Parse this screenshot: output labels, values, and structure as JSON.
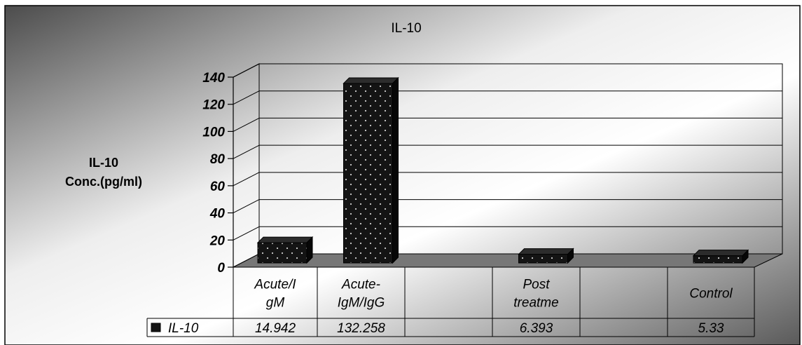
{
  "chart_data": {
    "type": "bar",
    "title": "IL-10",
    "ylabel": [
      "IL-10",
      "Conc.(pg/ml)"
    ],
    "xlabel": "",
    "ylim": [
      0,
      140
    ],
    "yticks": [
      0,
      20,
      40,
      60,
      80,
      100,
      120,
      140
    ],
    "grid": true,
    "categories": [
      [
        "Acute/I",
        "gM"
      ],
      [
        "Acute-",
        "IgM/IgG"
      ],
      [
        ""
      ],
      [
        "Post",
        "treatme"
      ],
      [
        ""
      ],
      [
        "Control"
      ]
    ],
    "series": [
      {
        "name": "IL-10",
        "values": [
          14.942,
          132.258,
          null,
          6.393,
          null,
          5.33
        ],
        "labels": [
          "14.942",
          "132.258",
          "",
          "6.393",
          "",
          "5.33"
        ]
      }
    ],
    "legend": "data table",
    "colors": {
      "bar_front": "#141414",
      "bar_top": "#2c2c2c",
      "bar_side": "#070707",
      "bar_dots": "#cfcfcf",
      "floor": "#777777",
      "border": "#000000"
    }
  }
}
